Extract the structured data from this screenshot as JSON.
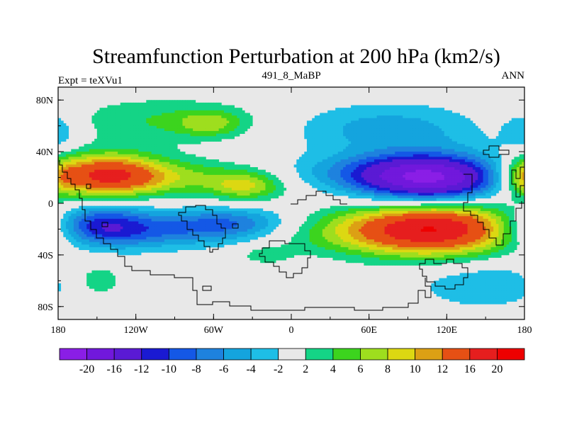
{
  "chart_data": {
    "type": "heatmap",
    "title": "Streamfunction Perturbation at 200 hPa (km2/s)",
    "left_string": "Expt = teXVu1",
    "center_string": "491_8_MaBP",
    "right_string": "ANN",
    "xlim": [
      -180,
      180
    ],
    "ylim": [
      -90,
      90
    ],
    "x_ticks": [
      {
        "value": -180,
        "label": "180"
      },
      {
        "value": -120,
        "label": "120W"
      },
      {
        "value": -60,
        "label": "60W"
      },
      {
        "value": 0,
        "label": "0"
      },
      {
        "value": 60,
        "label": "60E"
      },
      {
        "value": 120,
        "label": "120E"
      },
      {
        "value": 180,
        "label": "180"
      }
    ],
    "y_ticks": [
      {
        "value": 80,
        "label": "80N"
      },
      {
        "value": 40,
        "label": "40N"
      },
      {
        "value": 0,
        "label": "0"
      },
      {
        "value": -40,
        "label": "40S"
      },
      {
        "value": -80,
        "label": "80S"
      }
    ],
    "colorbar": {
      "levels": [
        "-20",
        "-16",
        "-12",
        "-10",
        "-8",
        "-6",
        "-4",
        "-2",
        "2",
        "4",
        "6",
        "8",
        "10",
        "12",
        "16",
        "20"
      ],
      "colors": [
        "#8a1ee6",
        "#7118dc",
        "#5a1ad4",
        "#1a1ad2",
        "#1458e6",
        "#1e82de",
        "#14a4de",
        "#1ebee6",
        "#e8e8e8",
        "#14d486",
        "#3cd41e",
        "#9ede1e",
        "#dcd812",
        "#dca014",
        "#e65014",
        "#e61e1e",
        "#ee0000"
      ]
    },
    "field": [
      {
        "lon": -145,
        "lat": 22,
        "value": 14,
        "sx": 30,
        "sy": 12
      },
      {
        "lon": -100,
        "lat": 20,
        "value": 6,
        "sx": 55,
        "sy": 10
      },
      {
        "lon": -35,
        "lat": 13,
        "value": 7,
        "sx": 20,
        "sy": 8
      },
      {
        "lon": -100,
        "lat": 64,
        "value": 4,
        "sx": 55,
        "sy": 13
      },
      {
        "lon": -62,
        "lat": 62,
        "value": 5,
        "sx": 18,
        "sy": 7
      },
      {
        "lon": -150,
        "lat": -16,
        "value": -10,
        "sx": 28,
        "sy": 12
      },
      {
        "lon": -105,
        "lat": -22,
        "value": -6,
        "sx": 55,
        "sy": 10
      },
      {
        "lon": -45,
        "lat": -15,
        "value": -7,
        "sx": 35,
        "sy": 9
      },
      {
        "lon": 108,
        "lat": 17,
        "value": -18,
        "sx": 40,
        "sy": 14
      },
      {
        "lon": 75,
        "lat": 24,
        "value": -6,
        "sx": 55,
        "sy": 10
      },
      {
        "lon": 75,
        "lat": 58,
        "value": -5,
        "sx": 55,
        "sy": 14
      },
      {
        "lon": 112,
        "lat": -18,
        "value": 16,
        "sx": 45,
        "sy": 16
      },
      {
        "lon": 70,
        "lat": -22,
        "value": 6,
        "sx": 70,
        "sy": 12
      },
      {
        "lon": 148,
        "lat": -62,
        "value": -4,
        "sx": 38,
        "sy": 14
      },
      {
        "lon": -150,
        "lat": -60,
        "value": 4,
        "sx": 15,
        "sy": 10
      },
      {
        "lon": -20,
        "lat": -40,
        "value": 3,
        "sx": 14,
        "sy": 5
      },
      {
        "lon": -180,
        "lat": 55,
        "value": -4,
        "sx": 12,
        "sy": 12
      },
      {
        "lon": 180,
        "lat": 20,
        "value": 6,
        "sx": 12,
        "sy": 12
      }
    ]
  }
}
